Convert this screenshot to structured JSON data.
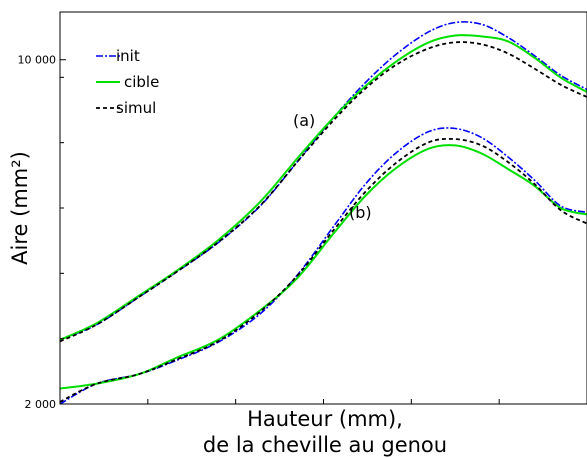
{
  "chart_data": {
    "type": "line",
    "title": "",
    "xlabel_line1": "Hauteur (mm),",
    "xlabel_line2": "de la cheville au genou",
    "ylabel": "Aire (mm²)",
    "yscale": "log",
    "ylim": [
      2000,
      12500
    ],
    "yticks": [
      2000,
      10000
    ],
    "ytick_labels": [
      "2 000",
      "10 000"
    ],
    "xlim": [
      0,
      100
    ],
    "grid": false,
    "legend_position": "top-left",
    "styles": {
      "init": {
        "color": "#0000ff",
        "dash": "7 2 2 2",
        "width": 1.6
      },
      "cible": {
        "color": "#00e000",
        "dash": "",
        "width": 2.0
      },
      "simul": {
        "color": "#000000",
        "dash": "4 3",
        "width": 1.8
      }
    },
    "annotations": [
      "(a)",
      "(b)"
    ],
    "x": [
      0,
      7,
      15,
      22,
      30,
      38,
      45,
      52,
      58,
      64,
      70,
      75,
      80,
      85,
      90,
      95,
      100
    ],
    "series": [
      {
        "name": "init",
        "group": "(a)",
        "values": [
          2700,
          2900,
          3300,
          3700,
          4250,
          5050,
          6200,
          7650,
          9000,
          10300,
          11400,
          11900,
          11800,
          11100,
          10200,
          9300,
          8700
        ]
      },
      {
        "name": "cible",
        "group": "(a)",
        "values": [
          2700,
          2920,
          3320,
          3720,
          4300,
          5150,
          6300,
          7650,
          8850,
          9950,
          10850,
          11200,
          11150,
          10900,
          10100,
          9200,
          8600
        ]
      },
      {
        "name": "simul",
        "group": "(a)",
        "values": [
          2680,
          2900,
          3300,
          3700,
          4260,
          5060,
          6200,
          7550,
          8750,
          9800,
          10550,
          10850,
          10750,
          10300,
          9600,
          8900,
          8400
        ]
      },
      {
        "name": "init",
        "group": "(b)",
        "values": [
          2000,
          2200,
          2300,
          2450,
          2670,
          3050,
          3650,
          4600,
          5600,
          6500,
          7150,
          7250,
          6950,
          6350,
          5700,
          5050,
          4900
        ]
      },
      {
        "name": "cible",
        "group": "(b)",
        "values": [
          2150,
          2200,
          2300,
          2480,
          2700,
          3100,
          3600,
          4450,
          5300,
          6050,
          6600,
          6700,
          6450,
          6000,
          5550,
          5000,
          4850
        ]
      },
      {
        "name": "simul",
        "group": "(b)",
        "values": [
          2020,
          2200,
          2300,
          2460,
          2680,
          3080,
          3640,
          4520,
          5400,
          6200,
          6800,
          6900,
          6700,
          6200,
          5600,
          4950,
          4650
        ]
      }
    ]
  },
  "legend": {
    "items": [
      {
        "key": "init",
        "label": "init"
      },
      {
        "key": "cible",
        "label": "cible"
      },
      {
        "key": "simul",
        "label": "simul"
      }
    ]
  }
}
